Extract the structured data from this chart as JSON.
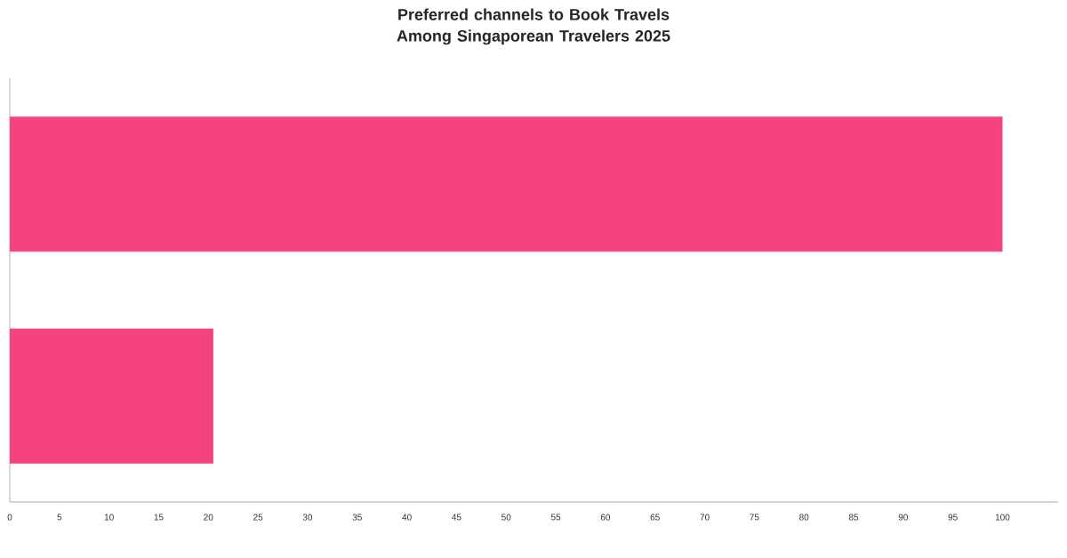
{
  "chart_data": {
    "type": "bar",
    "orientation": "horizontal",
    "title": "Preferred channels to Book Travels Among Singaporean Travelers 2025",
    "categories": [
      null,
      null
    ],
    "values": [
      100,
      20.5
    ],
    "color": "#f5437f",
    "xlim": [
      0,
      105.6
    ],
    "xticks": [
      0,
      5,
      10,
      15,
      20,
      25,
      30,
      35,
      40,
      45,
      50,
      55,
      60,
      65,
      70,
      75,
      80,
      85,
      90,
      95,
      100
    ]
  }
}
